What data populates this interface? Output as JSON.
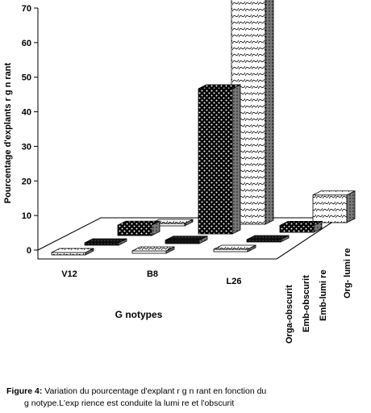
{
  "chart_data": {
    "type": "bar",
    "style": "3d-grouped-bar",
    "xlabel": "G notypes",
    "ylabel": "Pourcentage d'explants r g n rant",
    "ylim": [
      0,
      70
    ],
    "yticks": [
      "0",
      "10",
      "20",
      "30",
      "40",
      "50",
      "60",
      "70"
    ],
    "categories": [
      "V12",
      "B8",
      "L26"
    ],
    "series": [
      {
        "name": "Orga-obscurit",
        "values": [
          0,
          0,
          0
        ],
        "pattern": "wave-light"
      },
      {
        "name": "Emb-obscurit",
        "values": [
          0,
          1,
          0
        ],
        "pattern": "solid-dark"
      },
      {
        "name": "Emb-lumi re",
        "values": [
          3,
          42,
          2
        ],
        "pattern": "checker-dark"
      },
      {
        "name": "Org- lumi re",
        "values": [
          0,
          65,
          8
        ],
        "pattern": "wave-light"
      }
    ]
  },
  "caption": {
    "label": "Figure 4:",
    "line1": "Variation du pourcentage d'explant r  g  n  rant en fonction du",
    "line2": "g  notype.L'exp  rience est conduite    la lumi   re et    l'obscurit"
  }
}
